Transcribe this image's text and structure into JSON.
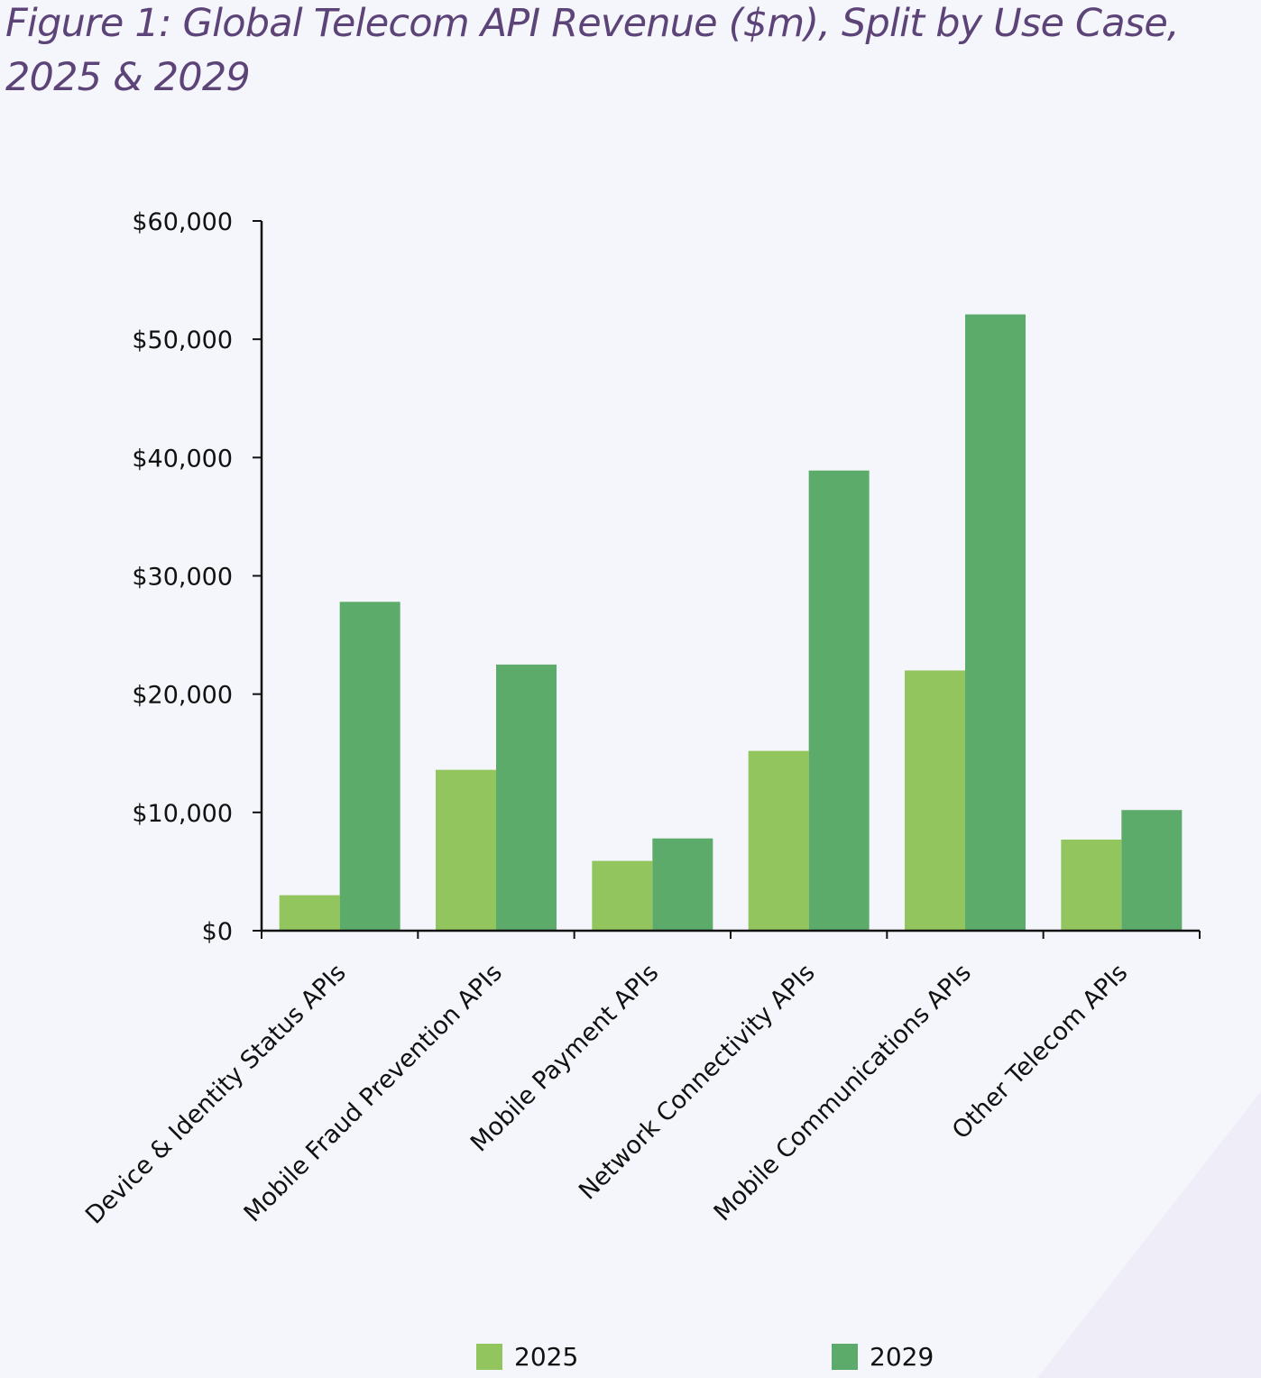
{
  "title": "Figure 1: Global Telecom API Revenue ($m), Split by Use Case, 2025 & 2029",
  "chart_data": {
    "type": "bar",
    "title": "Figure 1: Global Telecom API Revenue ($m), Split by Use Case, 2025 & 2029",
    "xlabel": "",
    "ylabel": "",
    "ylim": [
      0,
      60000
    ],
    "ytick_values": [
      0,
      10000,
      20000,
      30000,
      40000,
      50000,
      60000
    ],
    "ytick_labels": [
      "$0",
      "$10,000",
      "$20,000",
      "$30,000",
      "$40,000",
      "$50,000",
      "$60,000"
    ],
    "grid": false,
    "legend_position": "bottom",
    "categories": [
      "Device & Identity Status APIs",
      "Mobile Fraud Prevention APIs",
      "Mobile Payment APIs",
      "Network Connectivity APIs",
      "Mobile Communications APIs",
      "Other Telecom APIs"
    ],
    "series": [
      {
        "name": "2025",
        "color": "#93c55e",
        "values": [
          3000,
          13600,
          5900,
          15200,
          22000,
          7700
        ]
      },
      {
        "name": "2029",
        "color": "#5dab6a",
        "values": [
          27800,
          22500,
          7800,
          38900,
          52100,
          10200
        ]
      }
    ]
  }
}
